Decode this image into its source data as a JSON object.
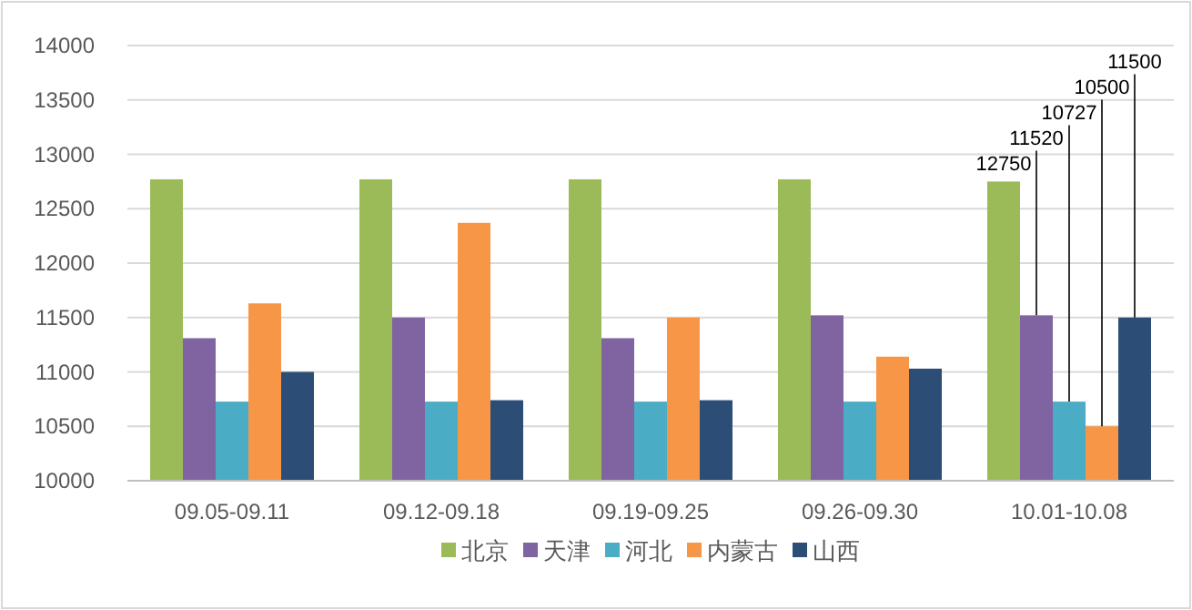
{
  "chart_data": {
    "type": "bar",
    "categories": [
      "09.05-09.11",
      "09.12-09.18",
      "09.19-09.25",
      "09.26-09.30",
      "10.01-10.08"
    ],
    "series": [
      {
        "name": "北京",
        "color": "#9bbb59",
        "values": [
          12770,
          12770,
          12770,
          12770,
          12750
        ],
        "value_labels": [
          null,
          null,
          null,
          null,
          "12750"
        ]
      },
      {
        "name": "天津",
        "color": "#8064a2",
        "values": [
          11310,
          11500,
          11310,
          11520,
          11520
        ],
        "value_labels": [
          null,
          null,
          null,
          null,
          "11520"
        ]
      },
      {
        "name": "河北",
        "color": "#4bacc6",
        "values": [
          10727,
          10727,
          10727,
          10727,
          10727
        ],
        "value_labels": [
          null,
          null,
          null,
          null,
          "10727"
        ]
      },
      {
        "name": "内蒙古",
        "color": "#f79646",
        "values": [
          11630,
          12370,
          11500,
          11140,
          10500
        ],
        "value_labels": [
          null,
          null,
          null,
          null,
          "10500"
        ]
      },
      {
        "name": "山西",
        "color": "#2c4d75",
        "values": [
          11000,
          10740,
          10740,
          11030,
          11500
        ],
        "value_labels": [
          null,
          null,
          null,
          null,
          "11500"
        ]
      }
    ],
    "ylim": [
      10000,
      14000
    ],
    "yticks": [
      10000,
      10500,
      11000,
      11500,
      12000,
      12500,
      13000,
      13500,
      14000
    ],
    "grid": "y",
    "legend": "bottom"
  }
}
